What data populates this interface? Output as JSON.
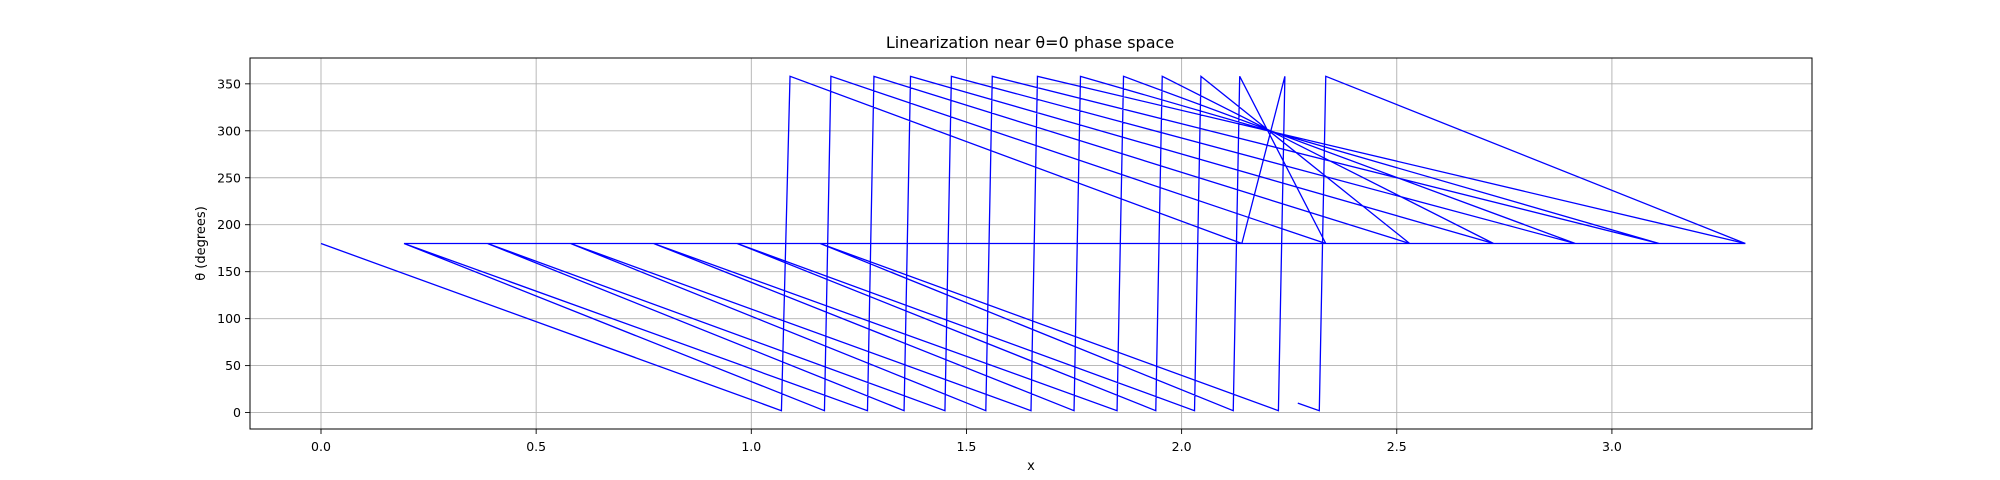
{
  "chart_data": {
    "type": "line",
    "title": "Linearization near θ=0 phase space",
    "xlabel": "x",
    "ylabel": "θ (degrees)",
    "xlim": [
      -0.165,
      3.465
    ],
    "ylim": [
      -17.5,
      377.5
    ],
    "xticks": [
      0.0,
      0.5,
      1.0,
      1.5,
      2.0,
      2.5,
      3.0
    ],
    "xtick_labels": [
      "0.0",
      "0.5",
      "1.0",
      "1.5",
      "2.0",
      "2.5",
      "3.0"
    ],
    "yticks": [
      0,
      50,
      100,
      150,
      200,
      250,
      300,
      350
    ],
    "ytick_labels": [
      "0",
      "50",
      "100",
      "150",
      "200",
      "250",
      "300",
      "350"
    ],
    "grid": true,
    "legend": "none",
    "series": [
      {
        "color": "#0000ff",
        "points": [
          [
            0.0,
            180
          ],
          [
            1.07,
            2
          ],
          [
            1.09,
            358
          ],
          [
            2.14,
            180
          ],
          [
            0.193,
            180
          ],
          [
            1.17,
            2
          ],
          [
            1.185,
            358
          ],
          [
            2.335,
            180
          ],
          [
            0.193,
            180
          ],
          [
            1.27,
            2
          ],
          [
            1.285,
            358
          ],
          [
            2.53,
            180
          ],
          [
            0.387,
            180
          ],
          [
            1.355,
            2
          ],
          [
            1.37,
            358
          ],
          [
            2.725,
            180
          ],
          [
            0.387,
            180
          ],
          [
            1.45,
            2
          ],
          [
            1.465,
            358
          ],
          [
            2.915,
            180
          ],
          [
            0.58,
            180
          ],
          [
            1.545,
            2
          ],
          [
            1.56,
            358
          ],
          [
            3.11,
            180
          ],
          [
            0.58,
            180
          ],
          [
            1.65,
            2
          ],
          [
            1.665,
            358
          ],
          [
            3.31,
            180
          ],
          [
            0.773,
            180
          ],
          [
            1.75,
            2
          ],
          [
            1.765,
            358
          ],
          [
            3.11,
            180
          ],
          [
            0.773,
            180
          ],
          [
            1.85,
            2
          ],
          [
            1.865,
            358
          ],
          [
            2.915,
            180
          ],
          [
            0.967,
            180
          ],
          [
            1.94,
            2
          ],
          [
            1.955,
            358
          ],
          [
            2.725,
            180
          ],
          [
            0.967,
            180
          ],
          [
            2.03,
            2
          ],
          [
            2.045,
            358
          ],
          [
            2.53,
            180
          ],
          [
            1.16,
            180
          ],
          [
            2.12,
            2
          ],
          [
            2.135,
            358
          ],
          [
            2.335,
            180
          ],
          [
            1.16,
            180
          ],
          [
            2.225,
            2
          ],
          [
            2.24,
            358
          ],
          [
            2.14,
            180
          ]
        ]
      },
      {
        "color": "#0000ff",
        "points": [
          [
            2.27,
            10
          ],
          [
            2.32,
            2
          ],
          [
            2.335,
            358
          ],
          [
            3.31,
            180
          ]
        ]
      }
    ]
  }
}
